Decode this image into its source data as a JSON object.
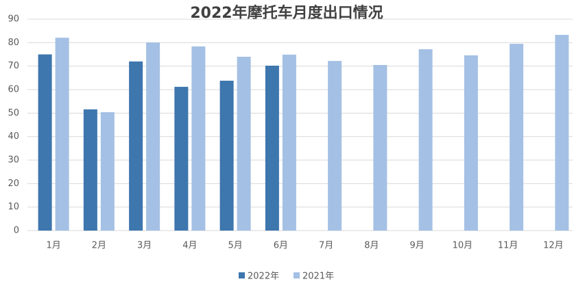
{
  "chart_data": {
    "type": "bar",
    "title": "2022年摩托车月度出口情况",
    "categories": [
      "1月",
      "2月",
      "3月",
      "4月",
      "5月",
      "6月",
      "7月",
      "8月",
      "9月",
      "10月",
      "11月",
      "12月"
    ],
    "series": [
      {
        "name": "2022年",
        "color": "#3e76ae",
        "values": [
          75,
          51.6,
          72,
          61.2,
          63.8,
          70.2,
          null,
          null,
          null,
          null,
          null,
          null
        ]
      },
      {
        "name": "2021年",
        "color": "#a4c0e4",
        "values": [
          82.1,
          50.4,
          80.1,
          78.4,
          74,
          74.9,
          72.2,
          70.5,
          77.2,
          74.6,
          79.5,
          83.3
        ]
      }
    ],
    "ylim": [
      0,
      90
    ],
    "yticks": [
      0,
      10,
      20,
      30,
      40,
      50,
      60,
      70,
      80,
      90
    ],
    "grid": true,
    "legend": "bottom"
  }
}
